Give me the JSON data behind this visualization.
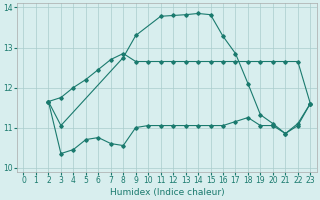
{
  "line_peak_x": [
    2,
    3,
    8,
    9,
    11,
    12,
    13,
    14,
    15,
    16,
    17,
    18,
    19,
    20,
    21,
    22,
    23
  ],
  "line_peak_y": [
    11.65,
    11.05,
    12.75,
    13.3,
    13.78,
    13.8,
    13.82,
    13.85,
    13.82,
    13.28,
    12.85,
    12.1,
    11.32,
    11.1,
    10.85,
    11.1,
    11.6
  ],
  "line_diag_x": [
    2,
    3,
    4,
    5,
    6,
    7,
    8,
    9,
    10,
    11,
    12,
    13,
    14,
    15,
    16,
    17,
    18,
    19,
    20,
    21,
    22,
    23
  ],
  "line_diag_y": [
    11.65,
    11.75,
    12.0,
    12.2,
    12.45,
    12.7,
    12.85,
    12.65,
    12.65,
    12.65,
    12.65,
    12.65,
    12.65,
    12.65,
    12.65,
    12.65,
    12.65,
    12.65,
    12.65,
    12.65,
    12.65,
    11.6
  ],
  "line_low_x": [
    2,
    3,
    4,
    5,
    6,
    7,
    8,
    9,
    10,
    11,
    12,
    13,
    14,
    15,
    16,
    17,
    18,
    19,
    20,
    21,
    22,
    23
  ],
  "line_low_y": [
    11.65,
    10.35,
    10.45,
    10.7,
    10.75,
    10.6,
    10.55,
    11.0,
    11.05,
    11.05,
    11.05,
    11.05,
    11.05,
    11.05,
    11.05,
    11.15,
    11.25,
    11.05,
    11.05,
    10.85,
    11.05,
    11.6
  ],
  "color": "#1a7a6e",
  "bg_color": "#d8eeee",
  "grid_color": "#aacccc",
  "xlabel": "Humidex (Indice chaleur)",
  "xlim": [
    -0.5,
    23.5
  ],
  "ylim": [
    9.9,
    14.1
  ],
  "yticks": [
    10,
    11,
    12,
    13,
    14
  ],
  "xticks": [
    0,
    1,
    2,
    3,
    4,
    5,
    6,
    7,
    8,
    9,
    10,
    11,
    12,
    13,
    14,
    15,
    16,
    17,
    18,
    19,
    20,
    21,
    22,
    23
  ]
}
